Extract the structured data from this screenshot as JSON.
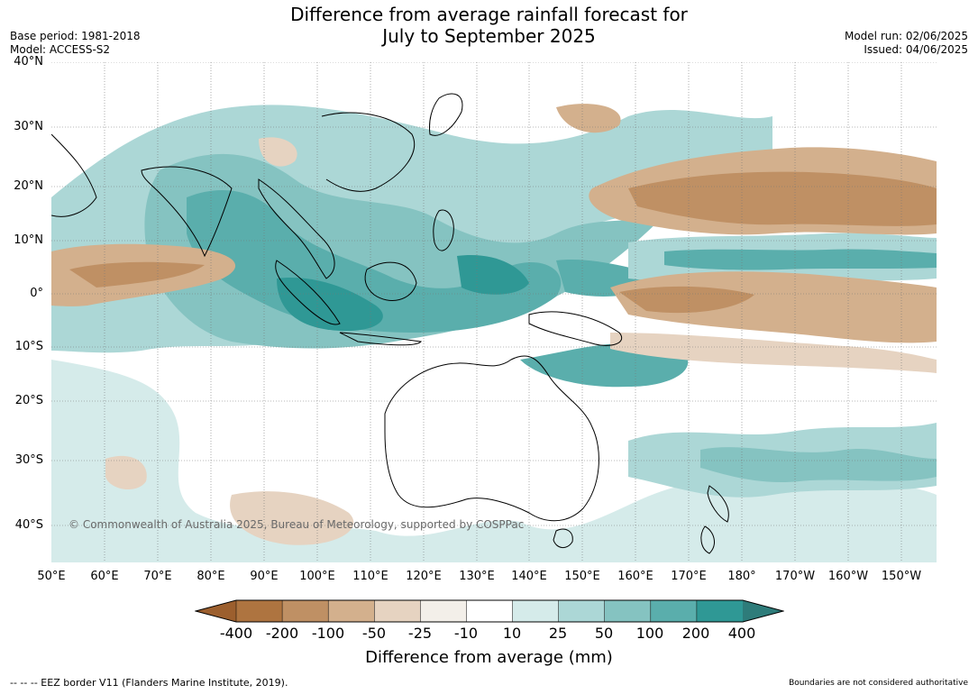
{
  "title": {
    "line1": "Difference from average rainfall forecast for",
    "line2": "July to September 2025"
  },
  "meta_left": {
    "base_period": "Base period: 1981-2018",
    "model": "Model: ACCESS-S2"
  },
  "meta_right": {
    "model_run": "Model run: 02/06/2025",
    "issued": "Issued: 04/06/2025"
  },
  "copyright": "© Commonwealth of Australia 2025, Bureau of Meteorology, supported by COSPPac",
  "latitude_labels": [
    "40°N",
    "30°N",
    "20°N",
    "10°N",
    "0°",
    "10°S",
    "20°S",
    "30°S",
    "40°S"
  ],
  "longitude_labels": [
    "50°E",
    "60°E",
    "70°E",
    "80°E",
    "90°E",
    "100°E",
    "110°E",
    "120°E",
    "130°E",
    "140°E",
    "150°E",
    "160°E",
    "170°E",
    "180°",
    "170°W",
    "160°W",
    "150°W"
  ],
  "colorbar": {
    "title": "Difference from average (mm)",
    "labels": [
      "-400",
      "-200",
      "-100",
      "-50",
      "-25",
      "-10",
      "10",
      "25",
      "50",
      "100",
      "200",
      "400"
    ],
    "colors": [
      "#9c5f2e",
      "#ae7440",
      "#bf9064",
      "#d3b08d",
      "#e6d3c1",
      "#f3efe9",
      "#ffffff",
      "#d5ebea",
      "#acd7d6",
      "#85c3c1",
      "#5aaeac",
      "#2f9895",
      "#2e7c7a"
    ]
  },
  "footer_left": "--  --  -- EEZ border V11 (Flanders Marine Institute, 2019).",
  "footer_right": "Boundaries are not considered authoritative"
}
